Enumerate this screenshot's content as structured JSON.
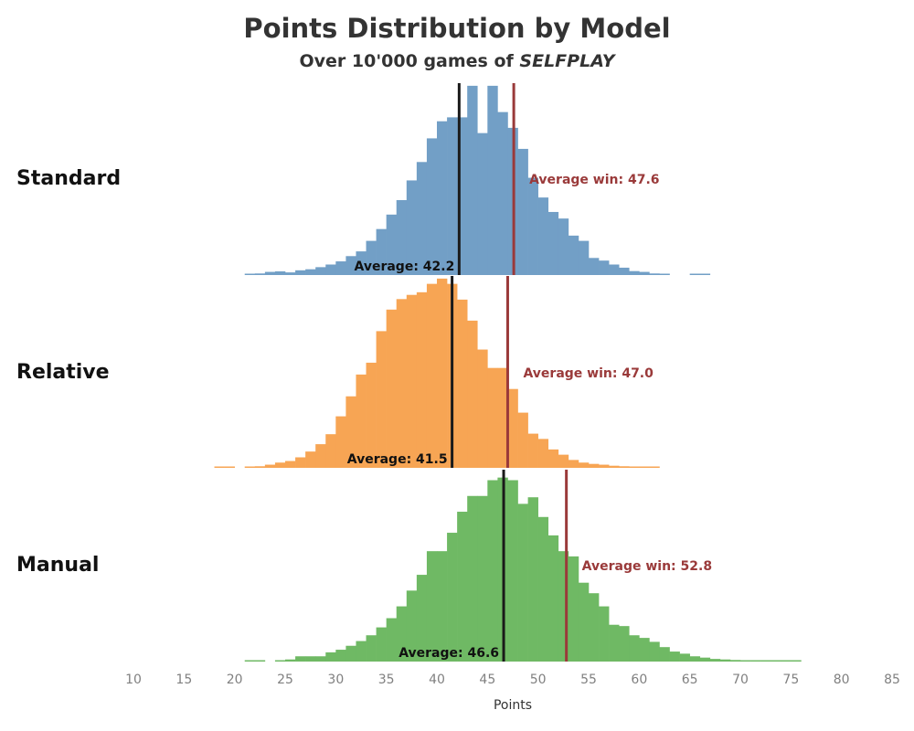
{
  "title": "Points Distribution by Model",
  "subtitle_prefix": "Over 10'000 games of ",
  "subtitle_emphasis": "SELFPLAY",
  "chart_data": {
    "type": "histogram",
    "xlabel": "Points",
    "xlim": [
      10,
      85
    ],
    "xticks": [
      10,
      15,
      20,
      25,
      30,
      35,
      40,
      45,
      50,
      55,
      60,
      65,
      70,
      75,
      80,
      85
    ],
    "bin_width": 1,
    "colors": {
      "Standard": "#729fc6",
      "Relative": "#f7a554",
      "Manual": "#6fb964",
      "average_line": "#1a1a1a",
      "average_win_line": "#9a3a3a"
    },
    "series": [
      {
        "name": "Standard",
        "bin_start": 21,
        "counts": [
          4,
          6,
          12,
          14,
          10,
          18,
          22,
          30,
          40,
          52,
          72,
          90,
          130,
          175,
          230,
          285,
          360,
          430,
          520,
          585,
          600,
          600,
          720,
          540,
          720,
          620,
          560,
          480,
          370,
          295,
          240,
          215,
          150,
          130,
          65,
          55,
          40,
          28,
          15,
          12,
          6,
          4,
          0,
          0,
          4,
          2
        ],
        "average": 42.2,
        "average_label": "Average: 42.2",
        "average_win": 47.6,
        "average_win_label": "Average win: 47.6"
      },
      {
        "name": "Relative",
        "bin_start": 18,
        "counts": [
          4,
          4,
          0,
          4,
          6,
          12,
          20,
          26,
          40,
          62,
          90,
          128,
          196,
          272,
          355,
          400,
          520,
          602,
          642,
          658,
          668,
          700,
          720,
          700,
          640,
          560,
          450,
          380,
          380,
          300,
          210,
          130,
          110,
          70,
          50,
          30,
          20,
          15,
          12,
          8,
          6,
          4,
          2,
          2
        ],
        "average": 41.5,
        "average_label": "Average: 41.5",
        "average_win": 47.0,
        "average_win_label": "Average win: 47.0"
      },
      {
        "name": "Manual",
        "bin_start": 21,
        "counts": [
          4,
          4,
          0,
          4,
          8,
          20,
          20,
          20,
          35,
          45,
          60,
          78,
          100,
          130,
          165,
          210,
          270,
          330,
          420,
          420,
          490,
          570,
          630,
          630,
          690,
          700,
          690,
          600,
          625,
          550,
          480,
          420,
          400,
          300,
          260,
          210,
          140,
          135,
          100,
          90,
          75,
          55,
          38,
          30,
          20,
          15,
          10,
          8,
          6,
          4,
          4,
          4,
          4,
          4,
          4
        ],
        "average": 46.6,
        "average_label": "Average: 46.6",
        "average_win": 52.8,
        "average_win_label": "Average win: 52.8"
      }
    ]
  }
}
